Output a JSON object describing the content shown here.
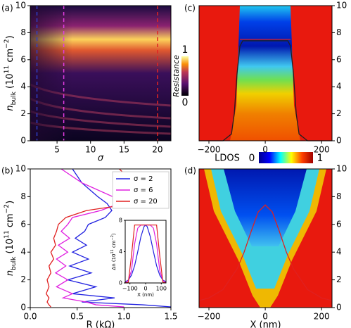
{
  "chart_data": [
    {
      "type": "heatmap",
      "panel_label": "(a)",
      "xlabel": "σ",
      "ylabel": [
        {
          "text": "n"
        },
        {
          "text": "bulk",
          "style": "sub"
        },
        {
          "text": " (10"
        },
        {
          "text": "11",
          "style": "sup"
        },
        {
          "text": " cm"
        },
        {
          "text": "−2",
          "style": "sup"
        },
        {
          "text": ")"
        }
      ],
      "xlim": [
        1,
        22
      ],
      "xticks": [
        5,
        10,
        15,
        20
      ],
      "ylim": [
        0,
        10
      ],
      "yticks": [
        0,
        2,
        4,
        6,
        8,
        10
      ],
      "colorbar": {
        "label": "Resistance",
        "ticks": [
          0,
          1
        ]
      },
      "markers": [
        {
          "x": 2,
          "color": "#2e3fc9"
        },
        {
          "x": 6,
          "color": "#e03ce0"
        },
        {
          "x": 20,
          "color": "#e02424"
        }
      ]
    },
    {
      "type": "line",
      "panel_label": "(b)",
      "xlabel": "R (kΩ)",
      "ylabel": [
        {
          "text": "n"
        },
        {
          "text": "bulk",
          "style": "sub"
        },
        {
          "text": " (10"
        },
        {
          "text": "11",
          "style": "sup"
        },
        {
          "text": " cm"
        },
        {
          "text": "−2",
          "style": "sup"
        },
        {
          "text": ")"
        }
      ],
      "xlim": [
        0,
        1.5
      ],
      "xticks": [
        {
          "value": 0,
          "label": "0.0"
        },
        {
          "value": 0.5,
          "label": "0.5"
        },
        {
          "value": 1,
          "label": "1.0"
        },
        {
          "value": 1.5,
          "label": "1.5"
        }
      ],
      "ylim": [
        0,
        10
      ],
      "yticks": [
        0,
        2,
        4,
        6,
        8,
        10
      ],
      "legend": "upper right",
      "y": [
        10,
        9,
        8,
        7.5,
        7,
        6.5,
        6,
        5.5,
        5,
        4.5,
        4,
        3.5,
        3,
        2.5,
        2,
        1.5,
        1,
        0.7,
        0.4,
        0.2,
        0.05
      ],
      "series": [
        {
          "name": "σ = 2",
          "color": "#2020e0",
          "values": [
            0.45,
            0.55,
            0.72,
            0.82,
            0.87,
            0.8,
            0.62,
            0.58,
            0.48,
            0.6,
            0.45,
            0.62,
            0.42,
            0.65,
            0.4,
            0.7,
            0.45,
            0.9,
            0.55,
            1.2,
            1.5
          ]
        },
        {
          "name": "σ = 6",
          "color": "#e020e0",
          "values": [
            0.33,
            0.55,
            0.88,
            0.95,
            0.75,
            0.45,
            0.4,
            0.33,
            0.42,
            0.3,
            0.4,
            0.28,
            0.38,
            0.27,
            0.4,
            0.28,
            0.45,
            0.35,
            0.6,
            0.7,
            1.0
          ]
        },
        {
          "name": "σ = 20",
          "color": "#e02020",
          "values": [
            0.95,
            1.1,
            1.18,
            1.1,
            0.6,
            0.38,
            0.3,
            0.28,
            0.25,
            0.27,
            0.22,
            0.25,
            0.2,
            0.22,
            0.18,
            0.2,
            0.17,
            0.2,
            0.18,
            0.2,
            0.22
          ]
        }
      ]
    },
    {
      "type": "line",
      "xlabel": "X (nm)",
      "ylabel": [
        {
          "text": "Δn (10"
        },
        {
          "text": "11",
          "style": "sup"
        },
        {
          "text": " cm"
        },
        {
          "text": "−2",
          "style": "sup"
        },
        {
          "text": ")"
        }
      ],
      "xlim": [
        -130,
        130
      ],
      "xticks": [
        {
          "value": -100,
          "label": "−100"
        },
        0,
        100
      ],
      "ylim": [
        0,
        8
      ],
      "yticks": [
        0,
        4,
        8
      ],
      "x": [
        -130,
        -110,
        -90,
        -70,
        -50,
        -30,
        -10,
        0,
        10,
        30,
        50,
        70,
        90,
        110,
        130
      ],
      "series": [
        {
          "color": "#2020e0",
          "values": [
            0.14,
            0.37,
            1.0,
            2.2,
            4.0,
            5.9,
            7.2,
            7.4,
            7.2,
            5.9,
            4.0,
            2.2,
            1.0,
            0.37,
            0.14
          ]
        },
        {
          "color": "#e020e0",
          "values": [
            0.05,
            0.3,
            1.6,
            5.0,
            7.0,
            7.4,
            7.4,
            7.4,
            7.4,
            7.4,
            7.0,
            5.0,
            1.6,
            0.3,
            0.05
          ]
        },
        {
          "color": "#e02020",
          "values": [
            0,
            0.1,
            3.5,
            7.4,
            7.4,
            7.4,
            7.4,
            7.4,
            7.4,
            7.4,
            7.4,
            7.4,
            3.5,
            0.1,
            0
          ]
        }
      ]
    },
    {
      "type": "heatmap",
      "panel_label": "(c)",
      "xlim": [
        -235,
        237
      ],
      "xticks": [
        {
          "value": -200,
          "label": "−200"
        },
        0,
        200
      ],
      "ylim": [
        0,
        10
      ],
      "yticks": [
        0,
        2,
        4,
        6,
        8,
        10
      ],
      "colorbar": {
        "label": "LDOS",
        "ticks": [
          0,
          1
        ]
      },
      "series": [
        {
          "color": "#202020",
          "x": [
            -235,
            -150,
            -120,
            -110,
            -100,
            -90,
            -80,
            0,
            80,
            90,
            100,
            110,
            120,
            150,
            237
          ],
          "values": [
            0,
            0,
            0.5,
            2,
            5,
            7,
            7.4,
            7.4,
            7.4,
            7,
            5,
            2,
            0.5,
            0,
            0
          ]
        },
        {
          "color": "#e02020",
          "x": [
            -90,
            90
          ],
          "values": [
            7.5,
            7.5
          ]
        }
      ]
    },
    {
      "type": "heatmap",
      "panel_label": "(d)",
      "xlabel": "X (nm)",
      "xlim": [
        -235,
        237
      ],
      "xticks": [
        {
          "value": -200,
          "label": "−200"
        },
        0,
        200
      ],
      "ylim": [
        0,
        10
      ],
      "yticks": [
        0,
        2,
        4,
        6,
        8,
        10
      ],
      "series": [
        {
          "color": "#e02020",
          "x": [
            -235,
            -200,
            -150,
            -100,
            -75,
            -50,
            -25,
            0,
            25,
            50,
            75,
            100,
            150,
            200,
            237
          ],
          "values": [
            0.5,
            0.7,
            1.3,
            2.8,
            4,
            5.5,
            6.9,
            7.4,
            6.9,
            5.5,
            4,
            2.8,
            1.3,
            0.7,
            0.5
          ]
        }
      ]
    }
  ]
}
